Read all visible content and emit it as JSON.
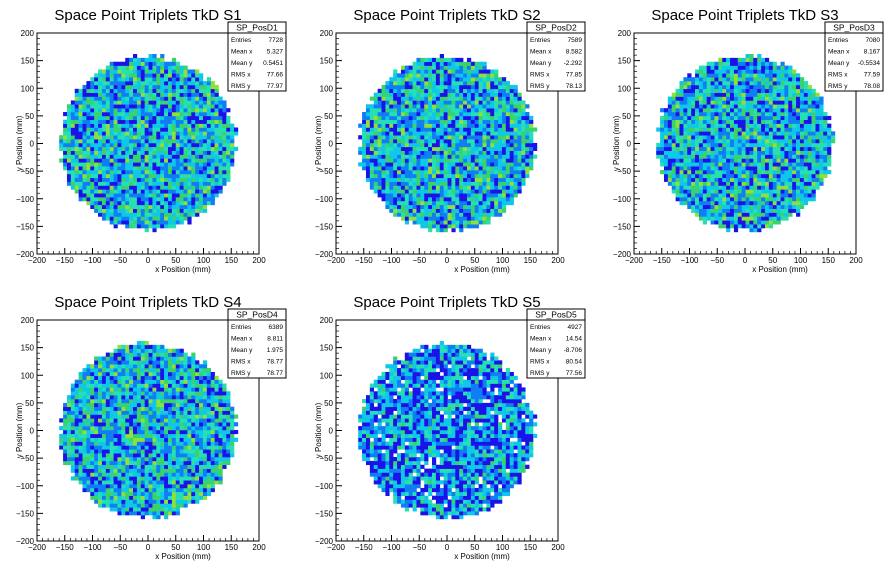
{
  "chart_data": [
    {
      "type": "heatmap",
      "title": "Space Point Triplets TkD S1",
      "xlabel": "x Position (mm)",
      "ylabel": "y Position (mm)",
      "xlim": [
        -200,
        200
      ],
      "ylim": [
        -200,
        200
      ],
      "xticks": [
        "−200",
        "−150",
        "−100",
        "−50",
        "0",
        "50",
        "100",
        "150",
        "200"
      ],
      "yticks": [
        "−200",
        "−150",
        "−100",
        "−50",
        "0",
        "50",
        "100",
        "150",
        "200"
      ],
      "grid": false,
      "colorscale": [
        "#1a12e8",
        "#0f7ef5",
        "#0fc8e8",
        "#26e0b4",
        "#3ad26a",
        "#8fe03a",
        "#e4dc2a",
        "#f08a1e",
        "#e8261a"
      ],
      "density_radius_mm": 160,
      "stats": {
        "name": "SP_PosD1",
        "rows": [
          {
            "label": "Entries",
            "value": "7728"
          },
          {
            "label": "Mean x",
            "value": "5.327"
          },
          {
            "label": "Mean y",
            "value": "0.5451"
          },
          {
            "label": "RMS x",
            "value": "77.66"
          },
          {
            "label": "RMS y",
            "value": "77.97"
          }
        ]
      }
    },
    {
      "type": "heatmap",
      "title": "Space Point Triplets TkD S2",
      "xlabel": "x Position (mm)",
      "ylabel": "y Position (mm)",
      "xlim": [
        -200,
        200
      ],
      "ylim": [
        -200,
        200
      ],
      "xticks": [
        "−200",
        "−150",
        "−100",
        "−50",
        "0",
        "50",
        "100",
        "150",
        "200"
      ],
      "yticks": [
        "−200",
        "−150",
        "−100",
        "−50",
        "0",
        "50",
        "100",
        "150",
        "200"
      ],
      "grid": false,
      "colorscale": [
        "#1a12e8",
        "#0f7ef5",
        "#0fc8e8",
        "#26e0b4",
        "#3ad26a",
        "#8fe03a",
        "#e4dc2a",
        "#f08a1e",
        "#e8261a"
      ],
      "density_radius_mm": 160,
      "stats": {
        "name": "SP_PosD2",
        "rows": [
          {
            "label": "Entries",
            "value": "7589"
          },
          {
            "label": "Mean x",
            "value": "8.582"
          },
          {
            "label": "Mean y",
            "value": "-2.292"
          },
          {
            "label": "RMS x",
            "value": "77.85"
          },
          {
            "label": "RMS y",
            "value": "78.13"
          }
        ]
      }
    },
    {
      "type": "heatmap",
      "title": "Space Point Triplets TkD S3",
      "xlabel": "x Position (mm)",
      "ylabel": "y Position (mm)",
      "xlim": [
        -200,
        200
      ],
      "ylim": [
        -200,
        200
      ],
      "xticks": [
        "−200",
        "−150",
        "−100",
        "−50",
        "0",
        "50",
        "100",
        "150",
        "200"
      ],
      "yticks": [
        "−200",
        "−150",
        "−100",
        "−50",
        "0",
        "50",
        "100",
        "150",
        "200"
      ],
      "grid": false,
      "colorscale": [
        "#1a12e8",
        "#0f7ef5",
        "#0fc8e8",
        "#26e0b4",
        "#3ad26a",
        "#8fe03a",
        "#e4dc2a",
        "#f08a1e",
        "#e8261a"
      ],
      "density_radius_mm": 160,
      "stats": {
        "name": "SP_PosD3",
        "rows": [
          {
            "label": "Entries",
            "value": "7080"
          },
          {
            "label": "Mean x",
            "value": "8.167"
          },
          {
            "label": "Mean y",
            "value": "-0.5534"
          },
          {
            "label": "RMS x",
            "value": "77.59"
          },
          {
            "label": "RMS y",
            "value": "78.08"
          }
        ]
      }
    },
    {
      "type": "heatmap",
      "title": "Space Point Triplets TkD S4",
      "xlabel": "x Position (mm)",
      "ylabel": "y Position (mm)",
      "xlim": [
        -200,
        200
      ],
      "ylim": [
        -200,
        200
      ],
      "xticks": [
        "−200",
        "−150",
        "−100",
        "−50",
        "0",
        "50",
        "100",
        "150",
        "200"
      ],
      "yticks": [
        "−200",
        "−150",
        "−100",
        "−50",
        "0",
        "50",
        "100",
        "150",
        "200"
      ],
      "grid": false,
      "colorscale": [
        "#1a12e8",
        "#0f7ef5",
        "#0fc8e8",
        "#26e0b4",
        "#3ad26a",
        "#8fe03a",
        "#e4dc2a",
        "#f08a1e",
        "#e8261a"
      ],
      "density_radius_mm": 160,
      "stats": {
        "name": "SP_PosD4",
        "rows": [
          {
            "label": "Entries",
            "value": "6389"
          },
          {
            "label": "Mean x",
            "value": "8.811"
          },
          {
            "label": "Mean y",
            "value": "1.975"
          },
          {
            "label": "RMS x",
            "value": "78.77"
          },
          {
            "label": "RMS y",
            "value": "78.77"
          }
        ]
      }
    },
    {
      "type": "heatmap",
      "title": "Space Point Triplets TkD S5",
      "xlabel": "x Position (mm)",
      "ylabel": "y Position (mm)",
      "xlim": [
        -200,
        200
      ],
      "ylim": [
        -200,
        200
      ],
      "xticks": [
        "−200",
        "−150",
        "−100",
        "−50",
        "0",
        "50",
        "100",
        "150",
        "200"
      ],
      "yticks": [
        "−200",
        "−150",
        "−100",
        "−50",
        "0",
        "50",
        "100",
        "150",
        "200"
      ],
      "grid": false,
      "colorscale": [
        "#1a12e8",
        "#0f7ef5",
        "#0fc8e8",
        "#26e0b4",
        "#3ad26a",
        "#8fe03a",
        "#e4dc2a",
        "#f08a1e",
        "#e8261a"
      ],
      "density_radius_mm": 160,
      "stats": {
        "name": "SP_PosD5",
        "rows": [
          {
            "label": "Entries",
            "value": "4927"
          },
          {
            "label": "Mean x",
            "value": "14.54"
          },
          {
            "label": "Mean y",
            "value": "-8.706"
          },
          {
            "label": "RMS x",
            "value": "80.54"
          },
          {
            "label": "RMS y",
            "value": "77.56"
          }
        ]
      }
    }
  ]
}
